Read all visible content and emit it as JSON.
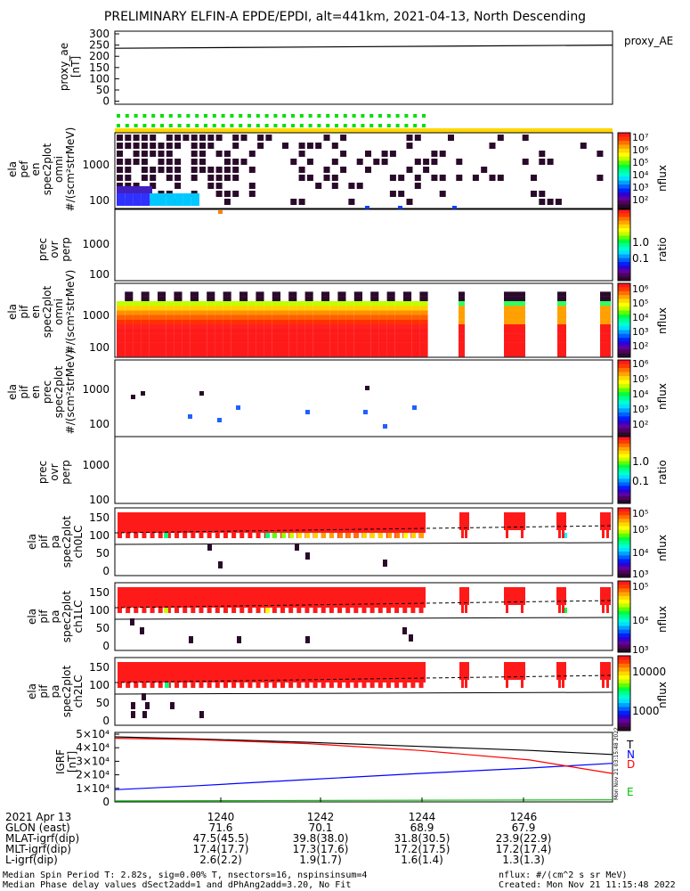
{
  "title": "PRELIMINARY ELFIN-A EPDE/EPDI, alt=441km, 2021-04-13, North Descending",
  "colors": {
    "spec_red": "#ff1a1a",
    "dark": "#2a0a2a",
    "frame": "#000000",
    "bT": "#000000",
    "bN": "#0000ff",
    "bD": "#ff0000",
    "bE": "#00c000"
  },
  "panels": {
    "ae": {
      "ylabel": "proxy_ae\n[nT]",
      "legend": "proxy_AE",
      "ticks": [
        "300",
        "250",
        "200",
        "150",
        "100",
        "50",
        "0"
      ]
    },
    "p1": {
      "ylabel": "ela\npef\nen\nspec2plot\nomni\n#/(scm²strMeV)",
      "ticks": [
        "1000",
        "100"
      ],
      "cbar_label": "nflux",
      "cbar_ticks": [
        "10⁷",
        "10⁶",
        "10⁵",
        "10⁴",
        "10³",
        "10²"
      ]
    },
    "p2": {
      "ylabel": "prec\novr\nperp",
      "ticks": [
        "1000",
        "100"
      ],
      "cbar_label": "ratio",
      "cbar_ticks": [
        "1.0",
        "0.1"
      ]
    },
    "p3": {
      "ylabel": "ela\npif\nen\nspec2plot\nomni\n#/(scm²strMeV)",
      "ticks": [
        "1000",
        "100"
      ],
      "cbar_label": "nflux",
      "cbar_ticks": [
        "10⁶",
        "10⁵",
        "10⁴",
        "10³",
        "10²"
      ]
    },
    "p4": {
      "ylabel": "ela\npif\nen\nprec\nspec2plot\n#/(scm²strMeV)",
      "ticks": [
        "1000",
        "100"
      ],
      "cbar_label": "nflux",
      "cbar_ticks": [
        "10⁶",
        "10⁵",
        "10⁴",
        "10³",
        "10²"
      ]
    },
    "p5": {
      "ylabel": "prec\novr\nperp",
      "ticks": [
        "1000",
        "100"
      ],
      "cbar_label": "ratio",
      "cbar_ticks": [
        "1.0",
        "0.1"
      ]
    },
    "p6": {
      "ylabel": "ela\npif\npa\nspec2plot\nch0LC",
      "ticks": [
        "150",
        "100",
        "50",
        "0"
      ],
      "cbar_label": "nflux",
      "cbar_ticks": [
        "10⁵",
        "10⁵",
        "10⁴",
        "10³"
      ]
    },
    "p7": {
      "ylabel": "ela\npif\npa\nspec2plot\nch1LC",
      "ticks": [
        "150",
        "100",
        "50",
        "0"
      ],
      "cbar_label": "nflux",
      "cbar_ticks": [
        "10⁵",
        "10⁴",
        "10³"
      ]
    },
    "p8": {
      "ylabel": "ela\npif\npa\nspec2plot\nch2LC",
      "ticks": [
        "150",
        "100",
        "50",
        "0"
      ],
      "cbar_label": "nflux",
      "cbar_ticks": [
        "10000",
        "1000"
      ]
    },
    "igrf": {
      "ylabel": "IGRF\n[nT]",
      "ticks": [
        "5×10⁴",
        "4×10⁴",
        "3×10⁴",
        "2×10⁴",
        "1×10⁴",
        "0"
      ],
      "components": [
        "T",
        "N",
        "D",
        "E"
      ],
      "stamp": "Mon Nov 21 03:15:48 2022"
    }
  },
  "xaxis": {
    "rows": [
      {
        "label": "2021 Apr 13",
        "values": [
          "1240",
          "1242",
          "1244",
          "1246"
        ]
      },
      {
        "label": "GLON (east)",
        "values": [
          "71.6",
          "70.1",
          "68.9",
          "67.9"
        ]
      },
      {
        "label": "MLAT-igrf(dip)",
        "values": [
          "47.5(45.5)",
          "39.8(38.0)",
          "31.8(30.5)",
          "23.9(22.9)"
        ]
      },
      {
        "label": "MLT-igrf(dip)",
        "values": [
          "17.4(17.7)",
          "17.3(17.6)",
          "17.2(17.5)",
          "17.2(17.4)"
        ]
      },
      {
        "label": "L-igrf(dip)",
        "values": [
          "2.6(2.2)",
          "1.9(1.7)",
          "1.6(1.4)",
          "1.3(1.3)"
        ]
      }
    ]
  },
  "footer": {
    "left1": "Median Spin Period T: 2.82s, sig=0.00% T, nsectors=16, nspinsinsum=4",
    "left2": "Median Phase delay values dSect2add=1 and dPhAng2add=3.20, No Fit",
    "right1": "nflux: #/(cm^2 s sr MeV)",
    "right2": "Created: Mon Nov 21 11:15:48 2022"
  },
  "chart_data": {
    "type": "line",
    "title": "PRELIMINARY ELFIN-A EPDE/EPDI, alt=441km, 2021-04-13, North Descending",
    "x_ticks": [
      "1240",
      "1242",
      "1244",
      "1246"
    ],
    "series": [
      {
        "name": "proxy_AE",
        "unit": "nT",
        "x": [
          "1238.5",
          "1247.5"
        ],
        "values": [
          248,
          262
        ],
        "ylim": [
          0,
          300
        ]
      },
      {
        "name": "T",
        "unit": "nT",
        "x": [
          "1238.5",
          "1240",
          "1242",
          "1244",
          "1246",
          "1247.5"
        ],
        "values": [
          48000,
          46500,
          44000,
          41000,
          38000,
          35000
        ],
        "ylim": [
          0,
          50000
        ]
      },
      {
        "name": "N",
        "unit": "nT",
        "x": [
          "1238.5",
          "1240",
          "1242",
          "1244",
          "1246",
          "1247.5"
        ],
        "values": [
          9000,
          12000,
          16500,
          21000,
          25000,
          28500
        ],
        "ylim": [
          0,
          50000
        ]
      },
      {
        "name": "D",
        "unit": "nT",
        "x": [
          "1238.5",
          "1240",
          "1242",
          "1244",
          "1246",
          "1247.5"
        ],
        "values": [
          47000,
          46000,
          43000,
          38000,
          31000,
          21000
        ],
        "ylim": [
          0,
          50000
        ]
      },
      {
        "name": "E",
        "unit": "nT",
        "x": [
          "1238.5",
          "1247.5"
        ],
        "values": [
          800,
          1500
        ],
        "ylim": [
          0,
          50000
        ]
      }
    ]
  }
}
